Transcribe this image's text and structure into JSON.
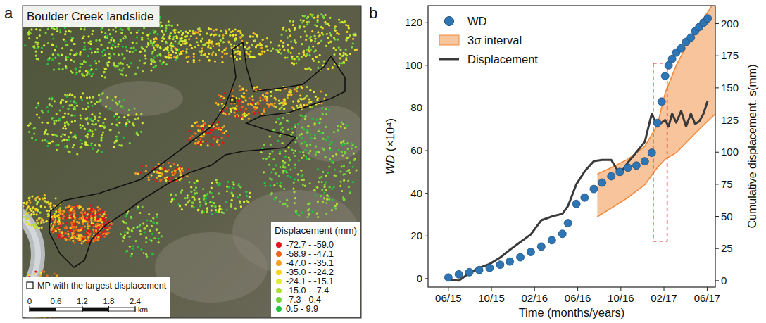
{
  "chart_data": [
    {
      "type": "map",
      "panel": "a",
      "title": "Boulder Creek landslide",
      "legend": "lower right",
      "legend_title": "Displacement (mm)",
      "classes": [
        {
          "label": "-72.7 - -59.0",
          "color": "#e3151b"
        },
        {
          "label": "-58.9 - -47.1",
          "color": "#f0621e"
        },
        {
          "label": "-47.0 - -35.1",
          "color": "#f5a21f"
        },
        {
          "label": "-35.0 - -24.2",
          "color": "#f7d51c"
        },
        {
          "label": "-24.1 - -15.1",
          "color": "#e2ee2e"
        },
        {
          "label": "-15.0 - -7.4",
          "color": "#b2e035"
        },
        {
          "label": "-7.3 - 0.4",
          "color": "#74d43a"
        },
        {
          "label": "0.5 - 9.9",
          "color": "#22c23c"
        }
      ],
      "marker_label": "MP with the largest displacement",
      "scale_bar": {
        "ticks": [
          0,
          0.6,
          1.2,
          1.8,
          2.4
        ],
        "unit": "km"
      }
    },
    {
      "type": "line",
      "panel": "b",
      "x_label": "Time (months/years)",
      "y_label": "WD (×10⁴)",
      "y2_label": "Cumulative displacement, s(mm)",
      "xlim": [
        2015.26,
        2017.48
      ],
      "xticks": [
        {
          "value": 2015.417,
          "label": "06/15"
        },
        {
          "value": 2015.75,
          "label": "10/15"
        },
        {
          "value": 2016.083,
          "label": "02/16"
        },
        {
          "value": 2016.417,
          "label": "06/16"
        },
        {
          "value": 2016.75,
          "label": "10/16"
        },
        {
          "value": 2017.083,
          "label": "02/17"
        },
        {
          "value": 2017.417,
          "label": "06/17"
        }
      ],
      "ylim": [
        -4,
        128
      ],
      "yticks": [
        0,
        20,
        40,
        60,
        80,
        100,
        120
      ],
      "y2lim": [
        -5,
        214
      ],
      "y2ticks": [
        0,
        25,
        50,
        75,
        100,
        125,
        150,
        175,
        200
      ],
      "legend": "upper left",
      "series": [
        {
          "name": "WD",
          "type": "scatter",
          "marker": "circle",
          "color": "#2e75b6",
          "x": [
            2015.417,
            2015.498,
            2015.579,
            2015.655,
            2015.736,
            2015.817,
            2015.892,
            2015.973,
            2016.054,
            2016.135,
            2016.217,
            2016.298,
            2016.341,
            2016.406,
            2016.47,
            2016.541,
            2016.605,
            2016.676,
            2016.741,
            2016.805,
            2016.87,
            2016.935,
            2016.989,
            2017.032,
            2017.065,
            2017.092,
            2017.119,
            2017.146,
            2017.178,
            2017.216,
            2017.254,
            2017.291,
            2017.324,
            2017.356,
            2017.389,
            2017.421
          ],
          "values": [
            0.5,
            2,
            3,
            4,
            5,
            6.5,
            8,
            10,
            12.5,
            15,
            18,
            21,
            26,
            35,
            38,
            42,
            45,
            48,
            50,
            52,
            53,
            55,
            59,
            73,
            83,
            95,
            100,
            103,
            106,
            108,
            111,
            113,
            116,
            118,
            120,
            122
          ]
        },
        {
          "name": "3σ interval",
          "type": "area",
          "color": "#f8c49c",
          "x": [
            2016.568,
            2016.676,
            2016.805,
            2016.935,
            2017.032,
            2017.092,
            2017.178,
            2017.291,
            2017.389,
            2017.476
          ],
          "lower": [
            29,
            33,
            38,
            44,
            52,
            56,
            59,
            66,
            72,
            77
          ],
          "upper": [
            49,
            52,
            56,
            62,
            72,
            87,
            100,
            113,
            122,
            130
          ]
        },
        {
          "name": "Displacement",
          "type": "line",
          "color": "#3a3a3a",
          "axis": "y2",
          "x": [
            2015.417,
            2015.498,
            2015.579,
            2015.655,
            2015.736,
            2015.817,
            2015.892,
            2015.973,
            2016.054,
            2016.135,
            2016.217,
            2016.298,
            2016.341,
            2016.406,
            2016.47,
            2016.541,
            2016.605,
            2016.676,
            2016.741,
            2016.805,
            2016.87,
            2016.935,
            2016.989,
            2017.032,
            2017.065,
            2017.092,
            2017.119,
            2017.146,
            2017.178,
            2017.216,
            2017.254,
            2017.291,
            2017.324,
            2017.356,
            2017.389,
            2017.421
          ],
          "values": [
            1,
            0,
            6,
            10,
            13,
            18,
            24,
            30,
            36,
            47,
            50,
            52,
            58,
            75,
            85,
            93,
            94,
            94,
            83,
            92,
            100,
            108,
            130,
            120,
            123,
            125,
            120,
            130,
            123,
            132,
            120,
            130,
            122,
            124,
            130,
            140
          ]
        }
      ],
      "annotations": [
        {
          "type": "rect",
          "x": [
            2017.0,
            2017.108
          ],
          "y": [
            17.5,
            101
          ],
          "color": "#e03030",
          "line_style": "dashed"
        }
      ]
    }
  ]
}
